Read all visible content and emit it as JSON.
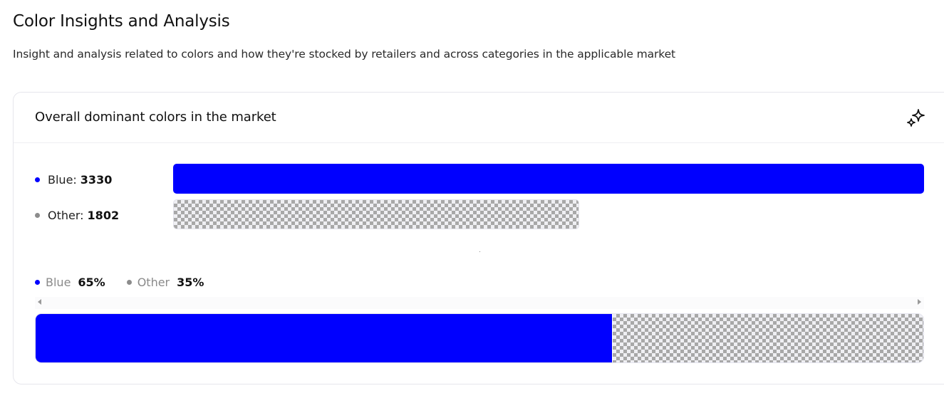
{
  "page": {
    "title": "Color Insights and Analysis",
    "subtitle": "Insight and analysis related to colors and how they're stocked by retailers and across categories in the applicable market"
  },
  "card": {
    "title": "Overall dominant colors in the market",
    "icon": "sparkles-icon"
  },
  "colors": {
    "blue": "#0000ff",
    "other": "#8c8c8c",
    "pattern_gray": "#a3a3a3"
  },
  "counts": {
    "items": [
      {
        "label": "Blue:",
        "value": "3330",
        "number": 3330,
        "color": "#0000ff",
        "pattern": false
      },
      {
        "label": "Other:",
        "value": "1802",
        "number": 1802,
        "color": "#8c8c8c",
        "pattern": true
      }
    ]
  },
  "shares": {
    "items": [
      {
        "label": "Blue",
        "value": "65%",
        "percent": 65,
        "color": "#0000ff",
        "pattern": false
      },
      {
        "label": "Other",
        "value": "35%",
        "percent": 35,
        "color": "#8c8c8c",
        "pattern": true
      }
    ]
  },
  "chart_data": [
    {
      "type": "bar",
      "orientation": "horizontal",
      "categories": [
        "Blue",
        "Other"
      ],
      "values": [
        3330,
        1802
      ]
    },
    {
      "type": "bar",
      "orientation": "stacked-horizontal",
      "categories": [
        "Blue",
        "Other"
      ],
      "values": [
        65,
        35
      ]
    }
  ]
}
